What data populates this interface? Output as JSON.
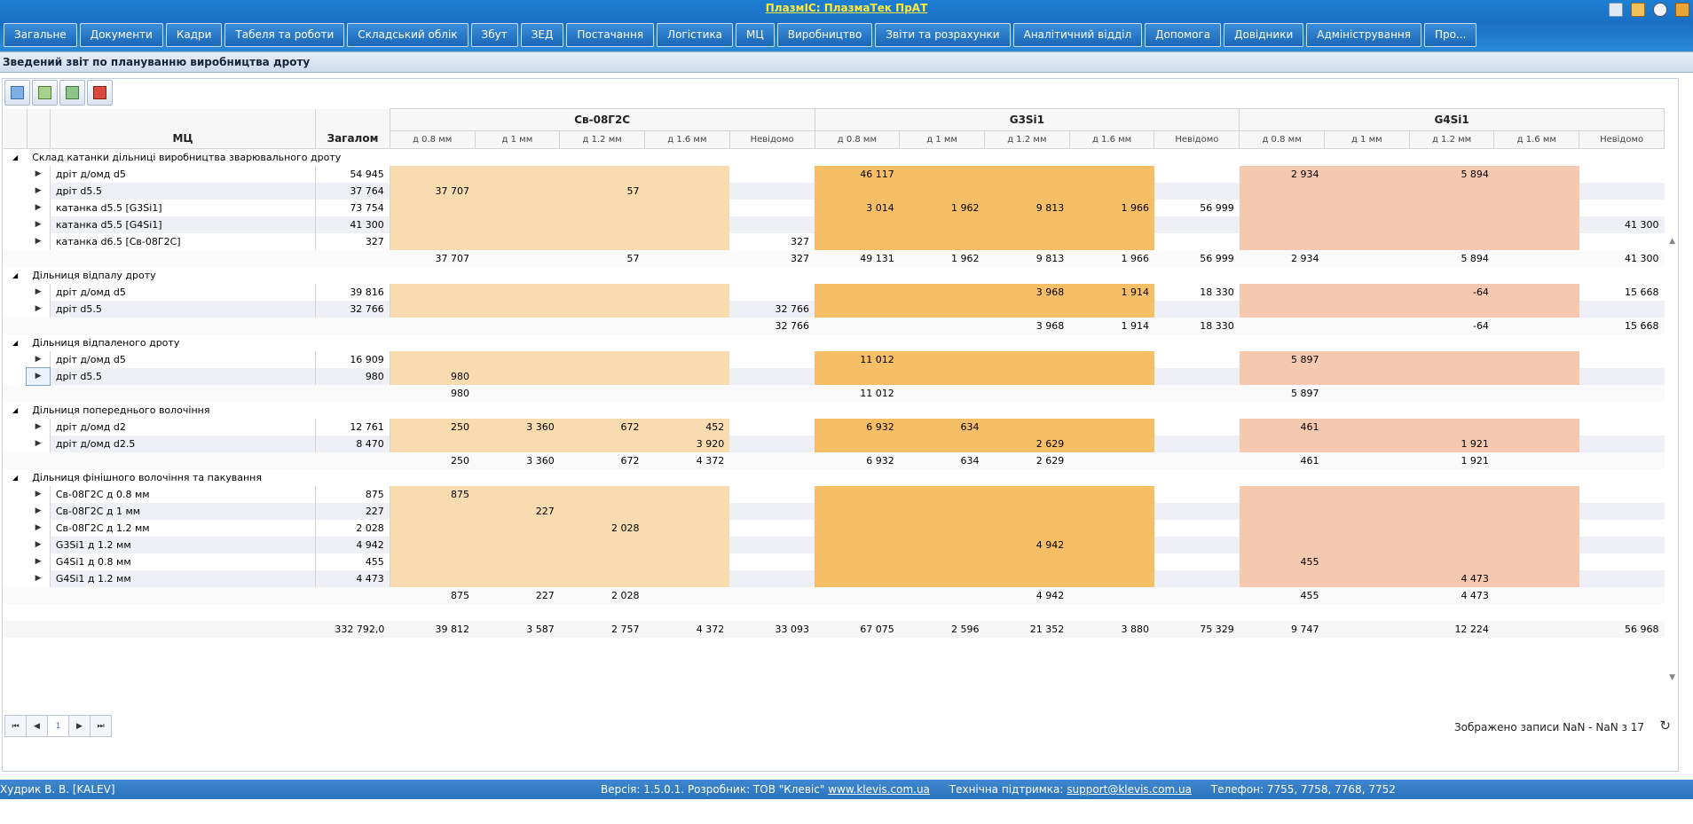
{
  "app": {
    "title": "ПлазмІС: ПлазмаТек ПрАТ"
  },
  "nav": [
    "Загальне",
    "Документи",
    "Кадри",
    "Табеля та роботи",
    "Складський облік",
    "Збут",
    "ЗЕД",
    "Постачання",
    "Логістика",
    "МЦ",
    "Виробництво",
    "Звіти та розрахунки",
    "Аналітичний відділ",
    "Допомога",
    "Довідники",
    "Адміністрування",
    "Про..."
  ],
  "report": {
    "title": "Зведений звіт по плануванню виробництва дроту"
  },
  "toolbar": [
    "refresh-report-icon",
    "export-grid-icon",
    "export-excel-icon",
    "export-pdf-icon"
  ],
  "grid": {
    "col_mc": "МЦ",
    "col_total": "Загалом",
    "groups": [
      "Св-08Г2С",
      "G3Si1",
      "G4Si1"
    ],
    "subcols": [
      "д 0.8 мм",
      "д 1 мм",
      "д 1.2 мм",
      "д 1.6 мм",
      "Невідомо"
    ],
    "sections": [
      {
        "name": "Склад катанки дільниці виробництва зварювального дроту",
        "rows": [
          {
            "mc": "дріт д/омд d5",
            "total": "54 945",
            "v": [
              "",
              "",
              "",
              "",
              "",
              "46 117",
              "",
              "",
              "",
              "",
              "2 934",
              "",
              "5 894",
              "",
              ""
            ]
          },
          {
            "mc": "дріт d5.5",
            "total": "37 764",
            "v": [
              "37 707",
              "",
              "57",
              "",
              "",
              "",
              "",
              "",
              "",
              "",
              "",
              "",
              "",
              "",
              ""
            ]
          },
          {
            "mc": "катанка d5.5 [G3Si1]",
            "total": "73 754",
            "v": [
              "",
              "",
              "",
              "",
              "",
              "3 014",
              "1 962",
              "9 813",
              "1 966",
              "56 999",
              "",
              "",
              "",
              "",
              ""
            ]
          },
          {
            "mc": "катанка d5.5 [G4Si1]",
            "total": "41 300",
            "v": [
              "",
              "",
              "",
              "",
              "",
              "",
              "",
              "",
              "",
              "",
              "",
              "",
              "",
              "",
              "41 300"
            ]
          },
          {
            "mc": "катанка d6.5 [Св-08Г2С]",
            "total": "327",
            "v": [
              "",
              "",
              "",
              "",
              "327",
              "",
              "",
              "",
              "",
              "",
              "",
              "",
              "",
              "",
              ""
            ]
          }
        ],
        "sum": [
          "37 707",
          "",
          "57",
          "",
          "327",
          "49 131",
          "1 962",
          "9 813",
          "1 966",
          "56 999",
          "2 934",
          "",
          "5 894",
          "",
          "41 300"
        ]
      },
      {
        "name": "Дільниця відпалу дроту",
        "rows": [
          {
            "mc": "дріт д/омд d5",
            "total": "39 816",
            "v": [
              "",
              "",
              "",
              "",
              "",
              "",
              "",
              "3 968",
              "1 914",
              "18 330",
              "",
              "",
              "-64",
              "",
              "15 668"
            ]
          },
          {
            "mc": "дріт d5.5",
            "total": "32 766",
            "v": [
              "",
              "",
              "",
              "",
              "32 766",
              "",
              "",
              "",
              "",
              "",
              "",
              "",
              "",
              "",
              ""
            ]
          }
        ],
        "sum": [
          "",
          "",
          "",
          "",
          "32 766",
          "",
          "",
          "3 968",
          "1 914",
          "18 330",
          "",
          "",
          "-64",
          "",
          "15 668"
        ]
      },
      {
        "name": "Дільниця відпаленого дроту",
        "rows": [
          {
            "mc": "дріт д/омд d5",
            "total": "16 909",
            "v": [
              "",
              "",
              "",
              "",
              "",
              "11 012",
              "",
              "",
              "",
              "",
              "5 897",
              "",
              "",
              "",
              ""
            ]
          },
          {
            "mc": "дріт d5.5",
            "total": "980",
            "v": [
              "980",
              "",
              "",
              "",
              "",
              "",
              "",
              "",
              "",
              "",
              "",
              "",
              "",
              "",
              ""
            ]
          }
        ],
        "sum": [
          "980",
          "",
          "",
          "",
          "",
          "11 012",
          "",
          "",
          "",
          "",
          "5 897",
          "",
          "",
          "",
          ""
        ]
      },
      {
        "name": "Дільниця попереднього волочіння",
        "rows": [
          {
            "mc": "дріт д/омд d2",
            "total": "12 761",
            "v": [
              "250",
              "3 360",
              "672",
              "452",
              "",
              "6 932",
              "634",
              "",
              "",
              "",
              "461",
              "",
              "",
              "",
              ""
            ]
          },
          {
            "mc": "дріт д/омд d2.5",
            "total": "8 470",
            "v": [
              "",
              "",
              "",
              "3 920",
              "",
              "",
              "",
              "2 629",
              "",
              "",
              "",
              "",
              "1 921",
              "",
              ""
            ]
          }
        ],
        "sum": [
          "250",
          "3 360",
          "672",
          "4 372",
          "",
          "6 932",
          "634",
          "2 629",
          "",
          "",
          "461",
          "",
          "1 921",
          "",
          ""
        ]
      },
      {
        "name": "Дільниця фінішного волочіння та пакування",
        "rows": [
          {
            "mc": "Св-08Г2С д 0.8 мм",
            "total": "875",
            "v": [
              "875",
              "",
              "",
              "",
              "",
              "",
              "",
              "",
              "",
              "",
              "",
              "",
              "",
              "",
              ""
            ]
          },
          {
            "mc": "Св-08Г2С д 1 мм",
            "total": "227",
            "v": [
              "",
              "227",
              "",
              "",
              "",
              "",
              "",
              "",
              "",
              "",
              "",
              "",
              "",
              "",
              ""
            ]
          },
          {
            "mc": "Св-08Г2С д 1.2 мм",
            "total": "2 028",
            "v": [
              "",
              "",
              "2 028",
              "",
              "",
              "",
              "",
              "",
              "",
              "",
              "",
              "",
              "",
              "",
              ""
            ]
          },
          {
            "mc": "G3Si1 д 1.2 мм",
            "total": "4 942",
            "v": [
              "",
              "",
              "",
              "",
              "",
              "",
              "",
              "4 942",
              "",
              "",
              "",
              "",
              "",
              "",
              ""
            ]
          },
          {
            "mc": "G4Si1 д 0.8 мм",
            "total": "455",
            "v": [
              "",
              "",
              "",
              "",
              "",
              "",
              "",
              "",
              "",
              "",
              "455",
              "",
              "",
              "",
              ""
            ]
          },
          {
            "mc": "G4Si1 д 1.2 мм",
            "total": "4 473",
            "v": [
              "",
              "",
              "",
              "",
              "",
              "",
              "",
              "",
              "",
              "",
              "",
              "",
              "4 473",
              "",
              ""
            ]
          }
        ],
        "sum": [
          "875",
          "227",
          "2 028",
          "",
          "",
          "",
          "",
          "4 942",
          "",
          "",
          "455",
          "",
          "4 473",
          "",
          ""
        ]
      }
    ],
    "grand_total": {
      "total": "332 792,0",
      "v": [
        "39 812",
        "3 587",
        "2 757",
        "4 372",
        "33 093",
        "67 075",
        "2 596",
        "21 352",
        "3 880",
        "75 329",
        "9 747",
        "",
        "12 224",
        "",
        "56 968"
      ]
    }
  },
  "pager": {
    "first": "⏮",
    "prev": "◀",
    "page": "1",
    "next": "▶",
    "last": "⏭",
    "info": "Зображено записи NaN - NaN з 17"
  },
  "status": {
    "user": "Худрик В. В. [KALEV]",
    "version": "Версія: 1.5.0.1. Розробник: ТОВ \"Клевіс\"",
    "site": "www.klevis.com.ua",
    "support_label": "Технічна підтримка:",
    "support_email": "support@klevis.com.ua",
    "phone": "Телефон: 7755, 7758, 7768, 7752"
  },
  "colors": {
    "sv": "#f8dcaf",
    "g3": "#f6be65",
    "g4": "#f5c8b0",
    "nav": "#1a66b8"
  }
}
